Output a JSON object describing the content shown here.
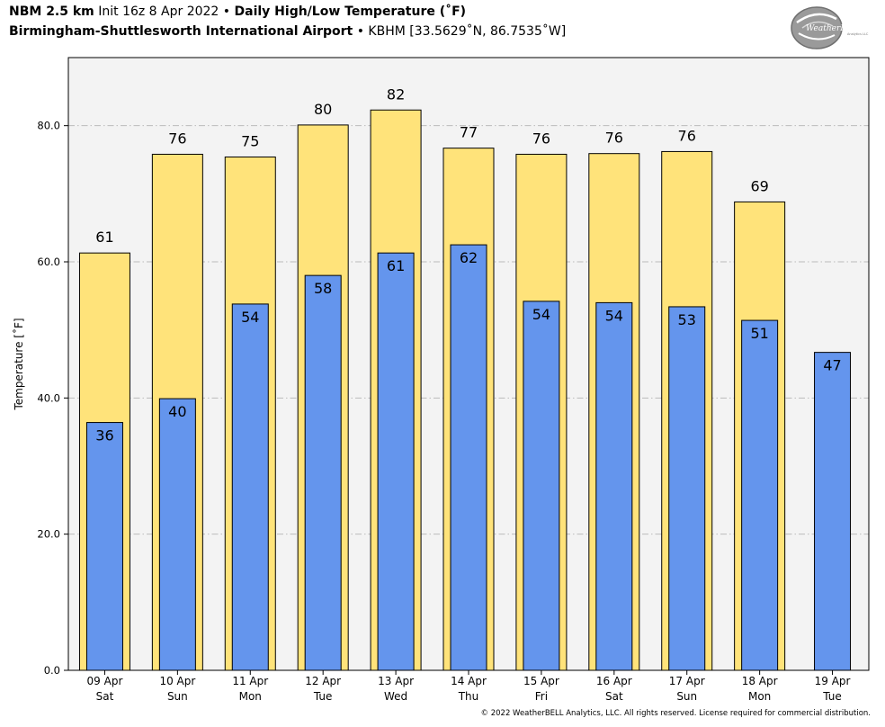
{
  "header": {
    "model": "NBM 2.5 km",
    "init": "Init 16z 8 Apr 2022",
    "sep": "•",
    "product": "Daily High/Low Temperature (˚F)",
    "location": "Birmingham-Shuttlesworth International Airport",
    "station": "KBHM [33.5629˚N, 86.7535˚W]"
  },
  "logo": {
    "text": "WeatherBELL",
    "subtext": "Analytics LLC"
  },
  "copyright": "© 2022 WeatherBELL Analytics, LLC. All rights reserved. License required for commercial distribution.",
  "colors": {
    "high": "#FFE37A",
    "low": "#6495ED",
    "plot_bg": "#F3F3F3",
    "grid": "#BBBBBB"
  },
  "chart_data": {
    "type": "bar",
    "title": "Daily High/Low Temperature (˚F)",
    "ylabel": "Temperature [˚F]",
    "ylim": [
      0,
      90
    ],
    "yticks": [
      0,
      20,
      40,
      60,
      80
    ],
    "ytick_labels": [
      "0.0",
      "20.0",
      "40.0",
      "60.0",
      "80.0"
    ],
    "grid": "horizontal dash-dot",
    "categories": [
      [
        "09 Apr",
        "Sat"
      ],
      [
        "10 Apr",
        "Sun"
      ],
      [
        "11 Apr",
        "Mon"
      ],
      [
        "12 Apr",
        "Tue"
      ],
      [
        "13 Apr",
        "Wed"
      ],
      [
        "14 Apr",
        "Thu"
      ],
      [
        "15 Apr",
        "Fri"
      ],
      [
        "16 Apr",
        "Sat"
      ],
      [
        "17 Apr",
        "Sun"
      ],
      [
        "18 Apr",
        "Mon"
      ],
      [
        "19 Apr",
        "Tue"
      ]
    ],
    "series": [
      {
        "key": "high",
        "values": [
          61.3,
          75.8,
          75.4,
          80.1,
          82.3,
          76.7,
          75.8,
          75.9,
          76.2,
          68.8,
          null
        ],
        "labels": [
          "61",
          "76",
          "75",
          "80",
          "82",
          "77",
          "76",
          "76",
          "76",
          "69",
          null
        ]
      },
      {
        "key": "low",
        "values": [
          36.4,
          39.9,
          53.8,
          58.0,
          61.3,
          62.5,
          54.2,
          54.0,
          53.4,
          51.4,
          46.7
        ],
        "labels": [
          "36",
          "40",
          "54",
          "58",
          "61",
          "62",
          "54",
          "54",
          "53",
          "51",
          "47"
        ]
      }
    ]
  }
}
